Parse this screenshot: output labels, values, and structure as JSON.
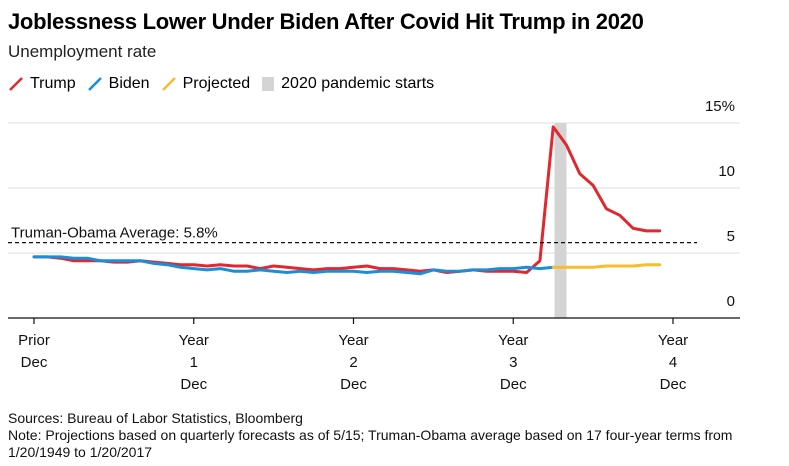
{
  "title": "Joblessness Lower Under Biden After Covid Hit Trump in 2020",
  "subtitle": "Unemployment rate",
  "legend": [
    {
      "label": "Trump",
      "color": "#e0282e",
      "kind": "line"
    },
    {
      "label": "Biden",
      "color": "#1c8ed8",
      "kind": "line"
    },
    {
      "label": "Projected",
      "color": "#f5bd2f",
      "kind": "line"
    },
    {
      "label": "2020 pandemic starts",
      "color": "#d4d4d4",
      "kind": "box"
    }
  ],
  "reference": {
    "label": "Truman-Obama Average: 5.8%",
    "value": 5.8
  },
  "footer": {
    "sources": "Sources: Bureau of Labor Statistics, Bloomberg",
    "note": "Note: Projections based on quarterly forecasts as of 5/15; Truman-Obama average based on 17 four-year terms from 1/20/1949 to 1/20/2017"
  },
  "chart_data": {
    "type": "line",
    "ylim": [
      0,
      15
    ],
    "yticks": [
      {
        "value": 15,
        "label": "15%"
      },
      {
        "value": 10,
        "label": "10"
      },
      {
        "value": 5,
        "label": "5"
      },
      {
        "value": 0,
        "label": "0"
      }
    ],
    "xlim": [
      0,
      48
    ],
    "xticks": [
      {
        "x": 0,
        "lines": [
          "Prior",
          "Dec"
        ]
      },
      {
        "x": 12,
        "lines": [
          "Year",
          "1",
          "Dec"
        ]
      },
      {
        "x": 24,
        "lines": [
          "Year",
          "2",
          "Dec"
        ]
      },
      {
        "x": 36,
        "lines": [
          "Year",
          "3",
          "Dec"
        ]
      },
      {
        "x": 48,
        "lines": [
          "Year",
          "4",
          "Dec"
        ]
      }
    ],
    "grid": true,
    "pandemic_band": {
      "x_start": 39.1,
      "x_end": 40.0
    },
    "series": [
      {
        "name": "Trump",
        "color": "#e0282e",
        "points": [
          [
            0,
            4.7
          ],
          [
            1,
            4.7
          ],
          [
            2,
            4.6
          ],
          [
            3,
            4.4
          ],
          [
            4,
            4.4
          ],
          [
            5,
            4.4
          ],
          [
            6,
            4.3
          ],
          [
            7,
            4.3
          ],
          [
            8,
            4.4
          ],
          [
            9,
            4.3
          ],
          [
            10,
            4.2
          ],
          [
            11,
            4.1
          ],
          [
            12,
            4.1
          ],
          [
            13,
            4.0
          ],
          [
            14,
            4.1
          ],
          [
            15,
            4.0
          ],
          [
            16,
            4.0
          ],
          [
            17,
            3.8
          ],
          [
            18,
            4.0
          ],
          [
            19,
            3.9
          ],
          [
            20,
            3.8
          ],
          [
            21,
            3.7
          ],
          [
            22,
            3.8
          ],
          [
            23,
            3.8
          ],
          [
            24,
            3.9
          ],
          [
            25,
            4.0
          ],
          [
            26,
            3.8
          ],
          [
            27,
            3.8
          ],
          [
            28,
            3.7
          ],
          [
            29,
            3.6
          ],
          [
            30,
            3.7
          ],
          [
            31,
            3.5
          ],
          [
            32,
            3.6
          ],
          [
            33,
            3.7
          ],
          [
            34,
            3.6
          ],
          [
            35,
            3.6
          ],
          [
            36,
            3.6
          ],
          [
            37,
            3.5
          ],
          [
            38,
            4.4
          ],
          [
            39,
            14.7
          ],
          [
            40,
            13.3
          ],
          [
            41,
            11.1
          ],
          [
            42,
            10.2
          ],
          [
            43,
            8.4
          ],
          [
            44,
            7.9
          ],
          [
            45,
            6.9
          ],
          [
            46,
            6.7
          ],
          [
            47,
            6.7
          ]
        ]
      },
      {
        "name": "Biden",
        "color": "#1c8ed8",
        "points": [
          [
            0,
            4.7
          ],
          [
            1,
            4.7
          ],
          [
            2,
            4.7
          ],
          [
            3,
            4.6
          ],
          [
            4,
            4.6
          ],
          [
            5,
            4.4
          ],
          [
            6,
            4.4
          ],
          [
            7,
            4.4
          ],
          [
            8,
            4.4
          ],
          [
            9,
            4.2
          ],
          [
            10,
            4.1
          ],
          [
            11,
            3.9
          ],
          [
            12,
            3.8
          ],
          [
            13,
            3.7
          ],
          [
            14,
            3.8
          ],
          [
            15,
            3.6
          ],
          [
            16,
            3.6
          ],
          [
            17,
            3.7
          ],
          [
            18,
            3.6
          ],
          [
            19,
            3.5
          ],
          [
            20,
            3.6
          ],
          [
            21,
            3.5
          ],
          [
            22,
            3.6
          ],
          [
            23,
            3.6
          ],
          [
            24,
            3.6
          ],
          [
            25,
            3.5
          ],
          [
            26,
            3.6
          ],
          [
            27,
            3.6
          ],
          [
            28,
            3.5
          ],
          [
            29,
            3.4
          ],
          [
            30,
            3.7
          ],
          [
            31,
            3.6
          ],
          [
            32,
            3.6
          ],
          [
            33,
            3.7
          ],
          [
            34,
            3.7
          ],
          [
            35,
            3.8
          ],
          [
            36,
            3.8
          ],
          [
            37,
            3.9
          ],
          [
            38,
            3.8
          ],
          [
            39,
            3.9
          ]
        ]
      },
      {
        "name": "Projected",
        "color": "#f5bd2f",
        "points": [
          [
            39,
            3.9
          ],
          [
            40,
            3.9
          ],
          [
            41,
            3.9
          ],
          [
            42,
            3.9
          ],
          [
            43,
            4.0
          ],
          [
            44,
            4.0
          ],
          [
            45,
            4.0
          ],
          [
            46,
            4.1
          ],
          [
            47,
            4.1
          ]
        ]
      }
    ]
  }
}
